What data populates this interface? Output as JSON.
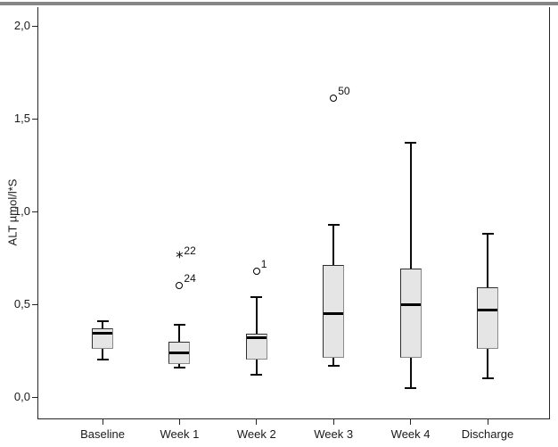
{
  "chart_data": {
    "type": "boxplot",
    "title": "",
    "ylabel": "ALT µmol/l*S",
    "xlabel": "",
    "ylim": [
      0,
      2.0
    ],
    "decimal_separator": ",",
    "grid": false,
    "yticks": [
      {
        "value": 0.0,
        "label": "0,0"
      },
      {
        "value": 0.5,
        "label": "0,5"
      },
      {
        "value": 1.0,
        "label": "1,0"
      },
      {
        "value": 1.5,
        "label": "1,5"
      },
      {
        "value": 2.0,
        "label": "2,0"
      }
    ],
    "categories": [
      "Baseline",
      "Week 1",
      "Week 2",
      "Week 3",
      "Week 4",
      "Discharge"
    ],
    "series": [
      {
        "category": "Baseline",
        "whisker_low": 0.2,
        "q1": 0.26,
        "median": 0.345,
        "q3": 0.37,
        "whisker_high": 0.41,
        "outliers": [],
        "extremes": []
      },
      {
        "category": "Week 1",
        "whisker_low": 0.16,
        "q1": 0.18,
        "median": 0.24,
        "q3": 0.3,
        "whisker_high": 0.39,
        "outliers": [
          {
            "value": 0.6,
            "label": "24"
          }
        ],
        "extremes": [
          {
            "value": 0.76,
            "label": "22"
          }
        ]
      },
      {
        "category": "Week 2",
        "whisker_low": 0.12,
        "q1": 0.2,
        "median": 0.32,
        "q3": 0.34,
        "whisker_high": 0.54,
        "outliers": [
          {
            "value": 0.68,
            "label": "1"
          }
        ],
        "extremes": []
      },
      {
        "category": "Week 3",
        "whisker_low": 0.17,
        "q1": 0.21,
        "median": 0.45,
        "q3": 0.71,
        "whisker_high": 0.93,
        "outliers": [
          {
            "value": 1.61,
            "label": "50"
          }
        ],
        "extremes": []
      },
      {
        "category": "Week 4",
        "whisker_low": 0.05,
        "q1": 0.21,
        "median": 0.5,
        "q3": 0.69,
        "whisker_high": 1.37,
        "outliers": [],
        "extremes": []
      },
      {
        "category": "Discharge",
        "whisker_low": 0.1,
        "q1": 0.26,
        "median": 0.47,
        "q3": 0.59,
        "whisker_high": 0.88,
        "outliers": [],
        "extremes": []
      }
    ],
    "colors": {
      "box_fill": "#e5e5e5",
      "box_border": "#2f2f2f",
      "median": "#000000",
      "axis": "#262626",
      "top_bar": "#868686"
    }
  }
}
